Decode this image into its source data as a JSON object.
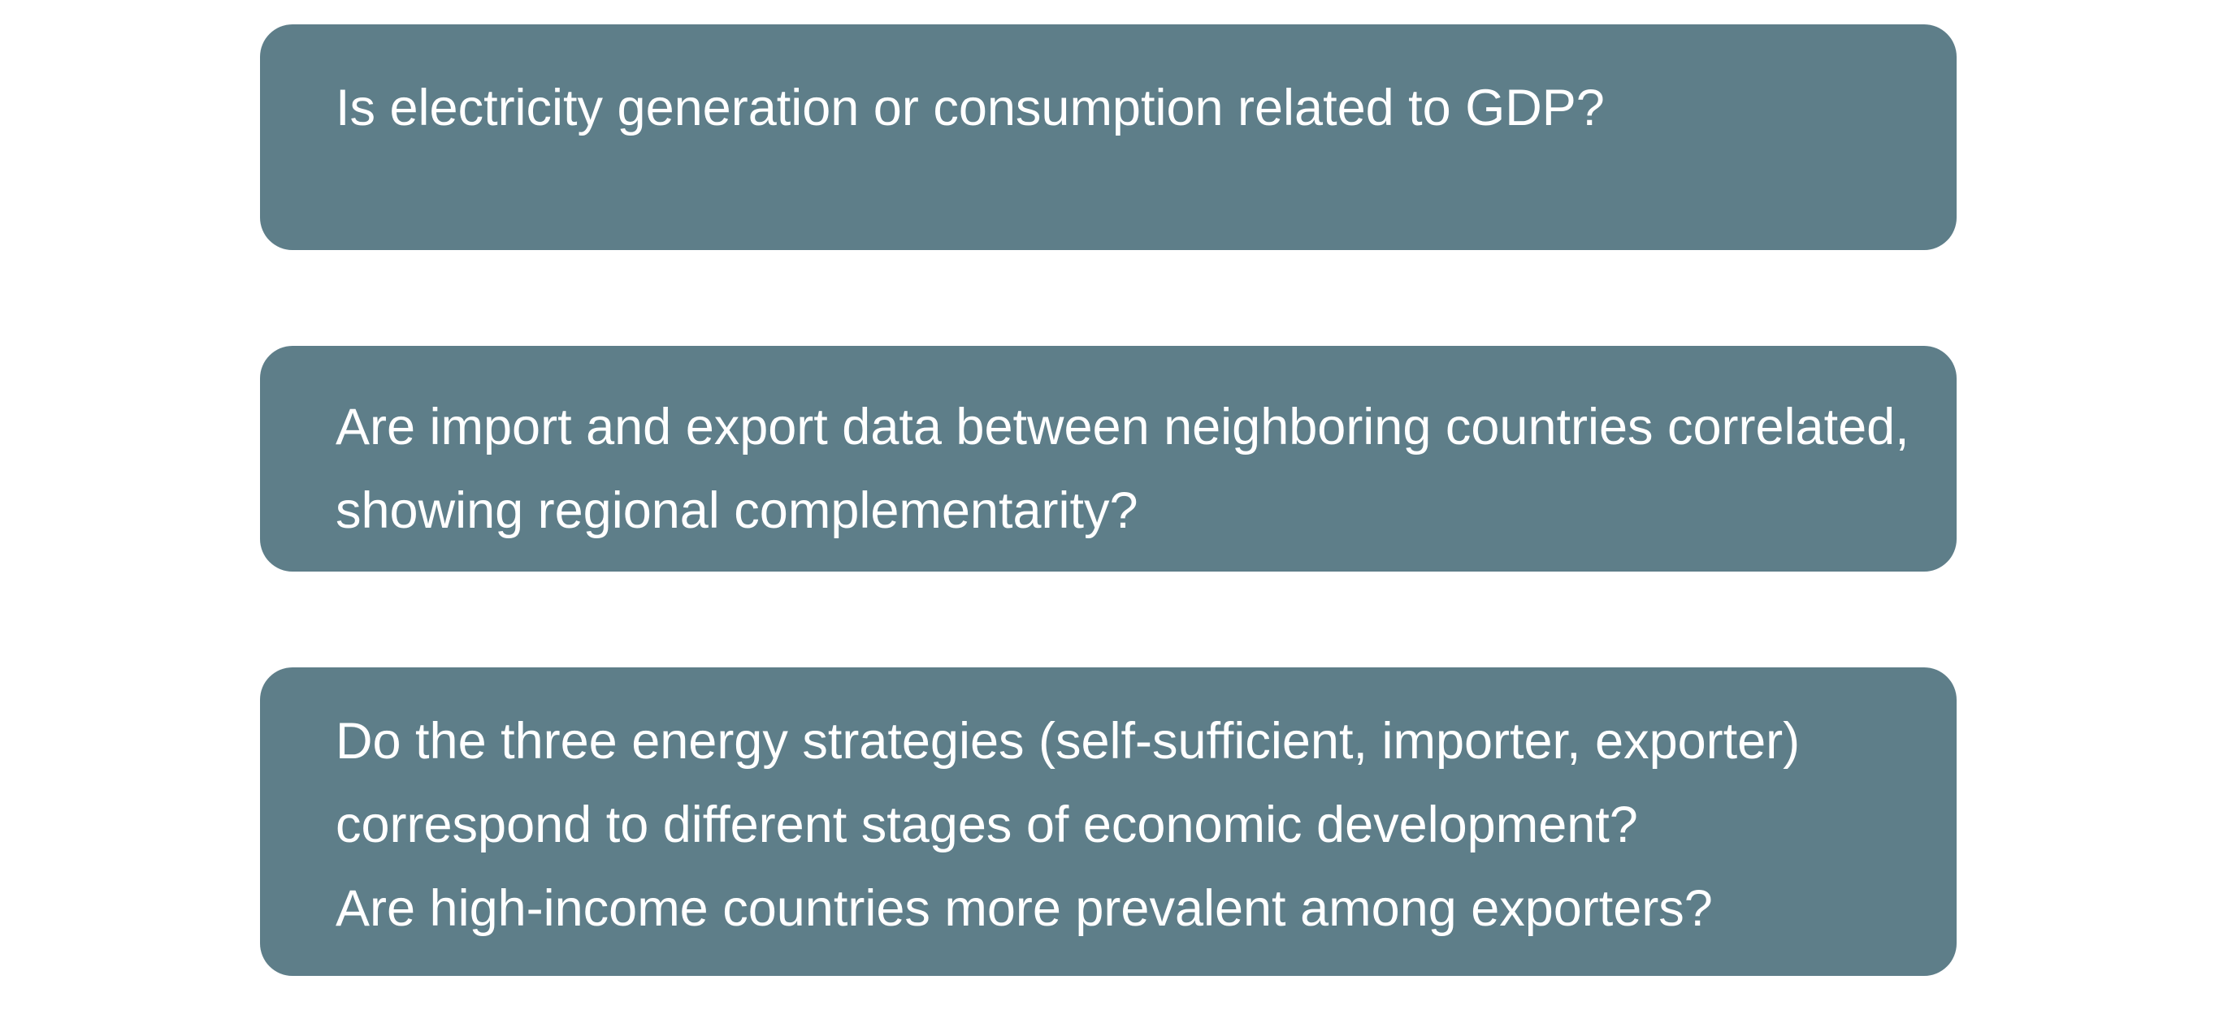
{
  "questions": [
    {
      "lines": [
        "Is electricity generation or consumption related to GDP?"
      ]
    },
    {
      "lines": [
        "Are import and export data between neighboring countries correlated,",
        "showing regional complementarity?"
      ]
    },
    {
      "lines": [
        "Do the three energy strategies (self-sufficient, importer, exporter)",
        "correspond to different stages of economic development?",
        "Are high-income countries more prevalent among exporters?"
      ]
    }
  ],
  "colors": {
    "card_background": "#5e7e89",
    "text": "#ffffff",
    "page_background": "#ffffff"
  }
}
